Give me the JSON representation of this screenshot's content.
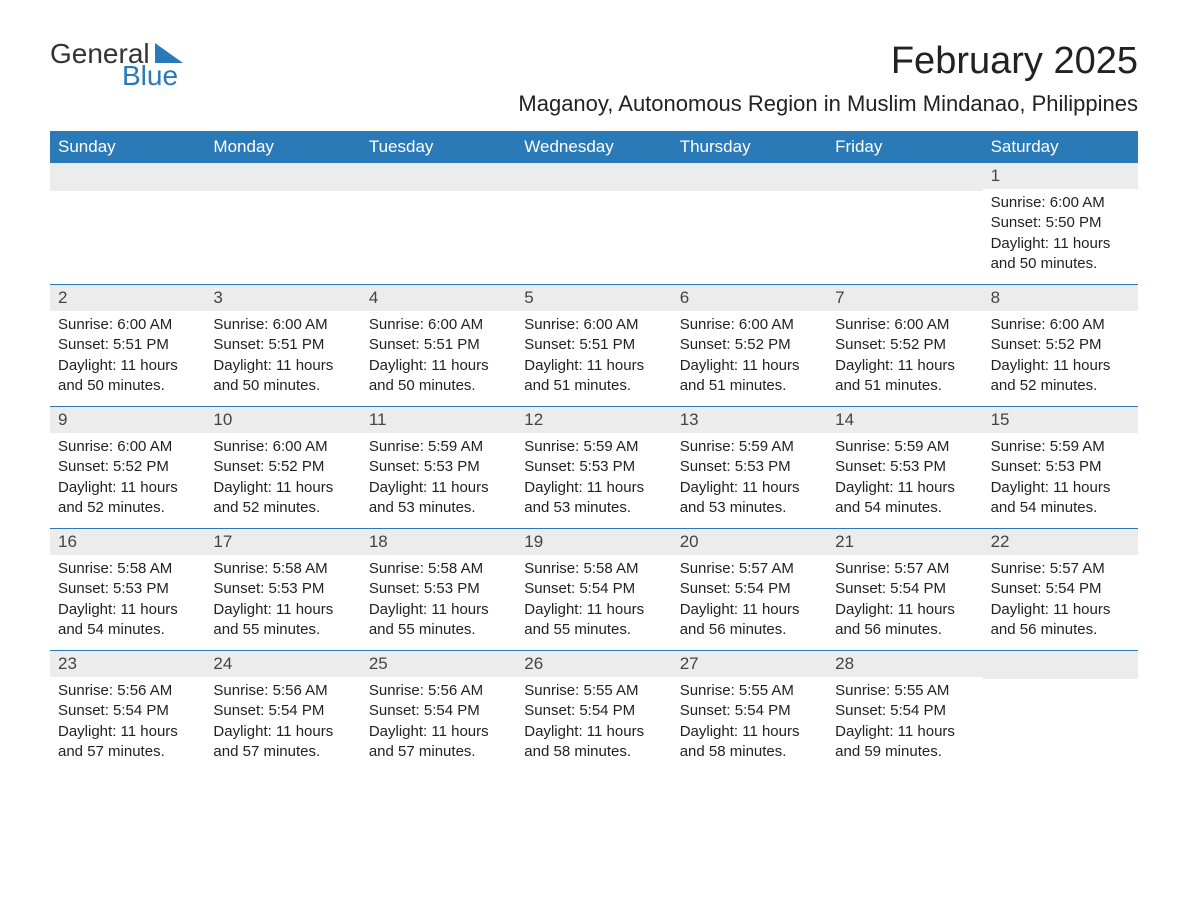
{
  "logo": {
    "general": "General",
    "blue": "Blue",
    "shape_color": "#2a7ab8"
  },
  "title": "February 2025",
  "location": "Maganoy, Autonomous Region in Muslim Mindanao, Philippines",
  "colors": {
    "header_bg": "#2a7ab8",
    "header_text": "#ffffff",
    "daynum_bg": "#ececec",
    "text": "#222222",
    "rule": "#2a7ab8"
  },
  "typography": {
    "title_fontsize": 38,
    "location_fontsize": 22,
    "weekday_fontsize": 17,
    "daynum_fontsize": 17,
    "body_fontsize": 15
  },
  "layout": {
    "columns": 7,
    "rows": 5
  },
  "weekdays": [
    "Sunday",
    "Monday",
    "Tuesday",
    "Wednesday",
    "Thursday",
    "Friday",
    "Saturday"
  ],
  "weeks": [
    [
      null,
      null,
      null,
      null,
      null,
      null,
      {
        "n": "1",
        "sunrise": "Sunrise: 6:00 AM",
        "sunset": "Sunset: 5:50 PM",
        "daylight": "Daylight: 11 hours and 50 minutes."
      }
    ],
    [
      {
        "n": "2",
        "sunrise": "Sunrise: 6:00 AM",
        "sunset": "Sunset: 5:51 PM",
        "daylight": "Daylight: 11 hours and 50 minutes."
      },
      {
        "n": "3",
        "sunrise": "Sunrise: 6:00 AM",
        "sunset": "Sunset: 5:51 PM",
        "daylight": "Daylight: 11 hours and 50 minutes."
      },
      {
        "n": "4",
        "sunrise": "Sunrise: 6:00 AM",
        "sunset": "Sunset: 5:51 PM",
        "daylight": "Daylight: 11 hours and 50 minutes."
      },
      {
        "n": "5",
        "sunrise": "Sunrise: 6:00 AM",
        "sunset": "Sunset: 5:51 PM",
        "daylight": "Daylight: 11 hours and 51 minutes."
      },
      {
        "n": "6",
        "sunrise": "Sunrise: 6:00 AM",
        "sunset": "Sunset: 5:52 PM",
        "daylight": "Daylight: 11 hours and 51 minutes."
      },
      {
        "n": "7",
        "sunrise": "Sunrise: 6:00 AM",
        "sunset": "Sunset: 5:52 PM",
        "daylight": "Daylight: 11 hours and 51 minutes."
      },
      {
        "n": "8",
        "sunrise": "Sunrise: 6:00 AM",
        "sunset": "Sunset: 5:52 PM",
        "daylight": "Daylight: 11 hours and 52 minutes."
      }
    ],
    [
      {
        "n": "9",
        "sunrise": "Sunrise: 6:00 AM",
        "sunset": "Sunset: 5:52 PM",
        "daylight": "Daylight: 11 hours and 52 minutes."
      },
      {
        "n": "10",
        "sunrise": "Sunrise: 6:00 AM",
        "sunset": "Sunset: 5:52 PM",
        "daylight": "Daylight: 11 hours and 52 minutes."
      },
      {
        "n": "11",
        "sunrise": "Sunrise: 5:59 AM",
        "sunset": "Sunset: 5:53 PM",
        "daylight": "Daylight: 11 hours and 53 minutes."
      },
      {
        "n": "12",
        "sunrise": "Sunrise: 5:59 AM",
        "sunset": "Sunset: 5:53 PM",
        "daylight": "Daylight: 11 hours and 53 minutes."
      },
      {
        "n": "13",
        "sunrise": "Sunrise: 5:59 AM",
        "sunset": "Sunset: 5:53 PM",
        "daylight": "Daylight: 11 hours and 53 minutes."
      },
      {
        "n": "14",
        "sunrise": "Sunrise: 5:59 AM",
        "sunset": "Sunset: 5:53 PM",
        "daylight": "Daylight: 11 hours and 54 minutes."
      },
      {
        "n": "15",
        "sunrise": "Sunrise: 5:59 AM",
        "sunset": "Sunset: 5:53 PM",
        "daylight": "Daylight: 11 hours and 54 minutes."
      }
    ],
    [
      {
        "n": "16",
        "sunrise": "Sunrise: 5:58 AM",
        "sunset": "Sunset: 5:53 PM",
        "daylight": "Daylight: 11 hours and 54 minutes."
      },
      {
        "n": "17",
        "sunrise": "Sunrise: 5:58 AM",
        "sunset": "Sunset: 5:53 PM",
        "daylight": "Daylight: 11 hours and 55 minutes."
      },
      {
        "n": "18",
        "sunrise": "Sunrise: 5:58 AM",
        "sunset": "Sunset: 5:53 PM",
        "daylight": "Daylight: 11 hours and 55 minutes."
      },
      {
        "n": "19",
        "sunrise": "Sunrise: 5:58 AM",
        "sunset": "Sunset: 5:54 PM",
        "daylight": "Daylight: 11 hours and 55 minutes."
      },
      {
        "n": "20",
        "sunrise": "Sunrise: 5:57 AM",
        "sunset": "Sunset: 5:54 PM",
        "daylight": "Daylight: 11 hours and 56 minutes."
      },
      {
        "n": "21",
        "sunrise": "Sunrise: 5:57 AM",
        "sunset": "Sunset: 5:54 PM",
        "daylight": "Daylight: 11 hours and 56 minutes."
      },
      {
        "n": "22",
        "sunrise": "Sunrise: 5:57 AM",
        "sunset": "Sunset: 5:54 PM",
        "daylight": "Daylight: 11 hours and 56 minutes."
      }
    ],
    [
      {
        "n": "23",
        "sunrise": "Sunrise: 5:56 AM",
        "sunset": "Sunset: 5:54 PM",
        "daylight": "Daylight: 11 hours and 57 minutes."
      },
      {
        "n": "24",
        "sunrise": "Sunrise: 5:56 AM",
        "sunset": "Sunset: 5:54 PM",
        "daylight": "Daylight: 11 hours and 57 minutes."
      },
      {
        "n": "25",
        "sunrise": "Sunrise: 5:56 AM",
        "sunset": "Sunset: 5:54 PM",
        "daylight": "Daylight: 11 hours and 57 minutes."
      },
      {
        "n": "26",
        "sunrise": "Sunrise: 5:55 AM",
        "sunset": "Sunset: 5:54 PM",
        "daylight": "Daylight: 11 hours and 58 minutes."
      },
      {
        "n": "27",
        "sunrise": "Sunrise: 5:55 AM",
        "sunset": "Sunset: 5:54 PM",
        "daylight": "Daylight: 11 hours and 58 minutes."
      },
      {
        "n": "28",
        "sunrise": "Sunrise: 5:55 AM",
        "sunset": "Sunset: 5:54 PM",
        "daylight": "Daylight: 11 hours and 59 minutes."
      },
      null
    ]
  ]
}
